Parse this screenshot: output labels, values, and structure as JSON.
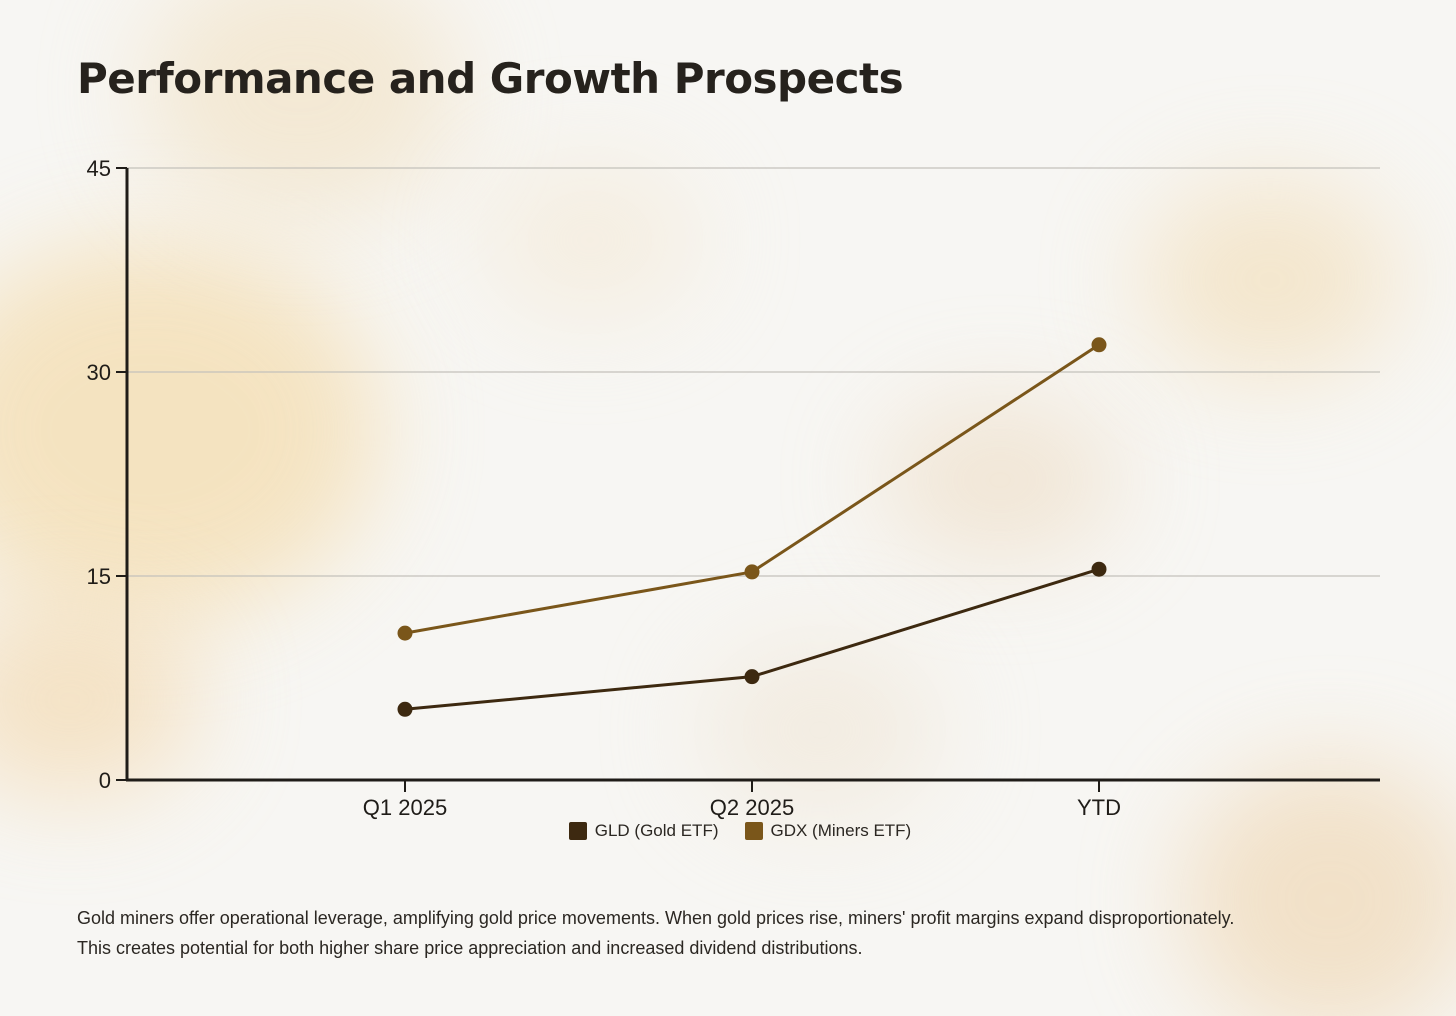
{
  "slide": {
    "title": "Performance and Growth Prospects",
    "caption": "Gold miners offer operational leverage, amplifying gold price movements. When gold prices rise, miners' profit margins expand disproportionately. This creates potential for both higher share price appreciation and increased dividend distributions."
  },
  "chart_data": {
    "type": "line",
    "title": "",
    "xlabel": "",
    "ylabel": "",
    "categories": [
      "Q1 2025",
      "Q2 2025",
      "YTD"
    ],
    "ylim": [
      0,
      45
    ],
    "yticks": [
      0,
      15,
      30,
      45
    ],
    "grid": true,
    "legend_position": "bottom-center",
    "series": [
      {
        "name": "GLD (Gold ETF)",
        "values": [
          5.2,
          7.6,
          15.5
        ],
        "color": "#3d2910"
      },
      {
        "name": "GDX (Miners ETF)",
        "values": [
          10.8,
          15.3,
          32.0
        ],
        "color": "#7a561a"
      }
    ]
  }
}
